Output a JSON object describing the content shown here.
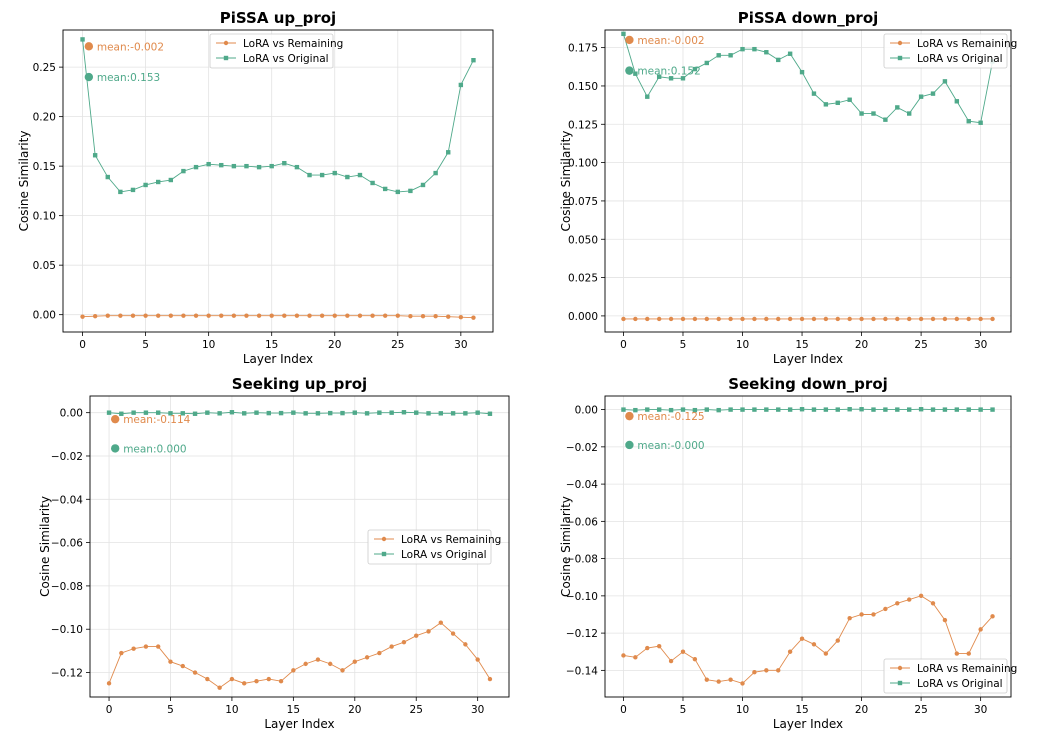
{
  "colors": {
    "remaining": "#e08a4c",
    "original": "#4fa98a"
  },
  "chart_data": [
    {
      "type": "line",
      "title": "PiSSA up_proj",
      "xlabel": "Layer Index",
      "ylabel": "Cosine Similarity",
      "xlim": [
        -1.55,
        32.55
      ],
      "ylim": [
        -0.0175,
        0.2875
      ],
      "xticks": [
        0,
        5,
        10,
        15,
        20,
        25,
        30
      ],
      "xtick_labels": [
        "0",
        "5",
        "10",
        "15",
        "20",
        "25",
        "30"
      ],
      "yticks": [
        0.0,
        0.05,
        0.1,
        0.15,
        0.2,
        0.25
      ],
      "ytick_labels": [
        "0.00",
        "0.05",
        "0.10",
        "0.15",
        "0.20",
        "0.25"
      ],
      "grid": true,
      "legend_position": "top-center",
      "x": [
        0,
        1,
        2,
        3,
        4,
        5,
        6,
        7,
        8,
        9,
        10,
        11,
        12,
        13,
        14,
        15,
        16,
        17,
        18,
        19,
        20,
        21,
        22,
        23,
        24,
        25,
        26,
        27,
        28,
        29,
        30,
        31
      ],
      "series": [
        {
          "name": "LoRA vs Remaining",
          "key": "remaining",
          "marker": "circle",
          "values": [
            -0.002,
            -0.0015,
            -0.001,
            -0.001,
            -0.001,
            -0.001,
            -0.001,
            -0.001,
            -0.001,
            -0.001,
            -0.001,
            -0.001,
            -0.001,
            -0.001,
            -0.001,
            -0.001,
            -0.001,
            -0.001,
            -0.001,
            -0.001,
            -0.001,
            -0.001,
            -0.001,
            -0.001,
            -0.001,
            -0.001,
            -0.0015,
            -0.0015,
            -0.0015,
            -0.002,
            -0.0025,
            -0.003
          ]
        },
        {
          "name": "LoRA vs Original",
          "key": "original",
          "marker": "square",
          "values": [
            0.278,
            0.161,
            0.139,
            0.124,
            0.126,
            0.131,
            0.134,
            0.136,
            0.145,
            0.149,
            0.152,
            0.151,
            0.15,
            0.15,
            0.149,
            0.15,
            0.153,
            0.149,
            0.141,
            0.141,
            0.143,
            0.139,
            0.141,
            0.133,
            0.127,
            0.124,
            0.125,
            0.131,
            0.143,
            0.164,
            0.232,
            0.257
          ]
        }
      ],
      "annotations": [
        {
          "key": "remaining",
          "text": "mean:-0.002",
          "x": 0.5,
          "y": 0.271
        },
        {
          "key": "original",
          "text": "mean:0.153",
          "x": 0.5,
          "y": 0.24
        }
      ]
    },
    {
      "type": "line",
      "title": "PiSSA down_proj",
      "xlabel": "Layer Index",
      "ylabel": "Cosine Similarity",
      "xlim": [
        -1.55,
        32.55
      ],
      "ylim": [
        -0.0105,
        0.1865
      ],
      "xticks": [
        0,
        5,
        10,
        15,
        20,
        25,
        30
      ],
      "xtick_labels": [
        "0",
        "5",
        "10",
        "15",
        "20",
        "25",
        "30"
      ],
      "yticks": [
        0.0,
        0.025,
        0.05,
        0.075,
        0.1,
        0.125,
        0.15,
        0.175
      ],
      "ytick_labels": [
        "0.000",
        "0.025",
        "0.050",
        "0.075",
        "0.100",
        "0.125",
        "0.150",
        "0.175"
      ],
      "grid": true,
      "legend_position": "top-right",
      "x": [
        0,
        1,
        2,
        3,
        4,
        5,
        6,
        7,
        8,
        9,
        10,
        11,
        12,
        13,
        14,
        15,
        16,
        17,
        18,
        19,
        20,
        21,
        22,
        23,
        24,
        25,
        26,
        27,
        28,
        29,
        30,
        31
      ],
      "series": [
        {
          "name": "LoRA vs Remaining",
          "key": "remaining",
          "marker": "circle",
          "values": [
            -0.002,
            -0.002,
            -0.002,
            -0.002,
            -0.002,
            -0.002,
            -0.002,
            -0.002,
            -0.002,
            -0.002,
            -0.002,
            -0.002,
            -0.002,
            -0.002,
            -0.002,
            -0.002,
            -0.002,
            -0.002,
            -0.002,
            -0.002,
            -0.002,
            -0.002,
            -0.002,
            -0.002,
            -0.002,
            -0.002,
            -0.002,
            -0.002,
            -0.002,
            -0.002,
            -0.002,
            -0.002
          ]
        },
        {
          "name": "LoRA vs Original",
          "key": "original",
          "marker": "square",
          "values": [
            0.184,
            0.158,
            0.143,
            0.156,
            0.155,
            0.155,
            0.161,
            0.165,
            0.17,
            0.17,
            0.174,
            0.174,
            0.172,
            0.167,
            0.171,
            0.159,
            0.145,
            0.138,
            0.139,
            0.141,
            0.132,
            0.132,
            0.128,
            0.136,
            0.132,
            0.143,
            0.145,
            0.153,
            0.14,
            0.127,
            0.126,
            0.166
          ]
        }
      ],
      "annotations": [
        {
          "key": "remaining",
          "text": "mean:-0.002",
          "x": 0.5,
          "y": 0.18
        },
        {
          "key": "original",
          "text": "mean:0.152",
          "x": 0.5,
          "y": 0.16
        }
      ]
    },
    {
      "type": "line",
      "title": "Seeking up_proj",
      "xlabel": "Layer Index",
      "ylabel": "Cosine Similarity",
      "xlim": [
        -1.55,
        32.55
      ],
      "ylim": [
        -0.1313,
        0.0077
      ],
      "xticks": [
        0,
        5,
        10,
        15,
        20,
        25,
        30
      ],
      "xtick_labels": [
        "0",
        "5",
        "10",
        "15",
        "20",
        "25",
        "30"
      ],
      "yticks": [
        0.0,
        -0.02,
        -0.04,
        -0.06,
        -0.08,
        -0.1,
        -0.12
      ],
      "ytick_labels": [
        "0.00",
        "−0.02",
        "−0.04",
        "−0.06",
        "−0.08",
        "−0.10",
        "−0.12"
      ],
      "grid": true,
      "legend_position": "center-right",
      "x": [
        0,
        1,
        2,
        3,
        4,
        5,
        6,
        7,
        8,
        9,
        10,
        11,
        12,
        13,
        14,
        15,
        16,
        17,
        18,
        19,
        20,
        21,
        22,
        23,
        24,
        25,
        26,
        27,
        28,
        29,
        30,
        31
      ],
      "series": [
        {
          "name": "LoRA vs Remaining",
          "key": "remaining",
          "marker": "circle",
          "values": [
            -0.125,
            -0.111,
            -0.109,
            -0.108,
            -0.108,
            -0.115,
            -0.117,
            -0.12,
            -0.123,
            -0.127,
            -0.123,
            -0.125,
            -0.124,
            -0.123,
            -0.124,
            -0.119,
            -0.116,
            -0.114,
            -0.116,
            -0.119,
            -0.115,
            -0.113,
            -0.111,
            -0.108,
            -0.106,
            -0.103,
            -0.101,
            -0.097,
            -0.102,
            -0.107,
            -0.114,
            -0.123
          ]
        },
        {
          "name": "LoRA vs Original",
          "key": "original",
          "marker": "square",
          "values": [
            0.0,
            -0.0005,
            0.0,
            0.0,
            0.0,
            -0.0003,
            -0.0003,
            -0.0005,
            0.0,
            -0.0003,
            0.0002,
            -0.0003,
            0.0,
            -0.0002,
            -0.0002,
            0.0,
            -0.0003,
            -0.0003,
            -0.0002,
            -0.0002,
            0.0,
            -0.0003,
            0.0,
            0.0,
            0.0002,
            0.0,
            -0.0003,
            -0.0003,
            -0.0003,
            -0.0003,
            0.0,
            -0.0005
          ]
        }
      ],
      "annotations": [
        {
          "key": "remaining",
          "text": "mean:-0.114",
          "x": 0.5,
          "y": -0.003
        },
        {
          "key": "original",
          "text": "mean:0.000",
          "x": 0.5,
          "y": -0.0165
        }
      ]
    },
    {
      "type": "line",
      "title": "Seeking down_proj",
      "xlabel": "Layer Index",
      "ylabel": "Cosine Similarity",
      "xlim": [
        -1.55,
        32.55
      ],
      "ylim": [
        -0.1543,
        0.0073
      ],
      "xticks": [
        0,
        5,
        10,
        15,
        20,
        25,
        30
      ],
      "xtick_labels": [
        "0",
        "5",
        "10",
        "15",
        "20",
        "25",
        "30"
      ],
      "yticks": [
        0.0,
        -0.02,
        -0.04,
        -0.06,
        -0.08,
        -0.1,
        -0.12,
        -0.14
      ],
      "ytick_labels": [
        "0.00",
        "−0.02",
        "−0.04",
        "−0.06",
        "−0.08",
        "−0.10",
        "−0.12",
        "−0.14"
      ],
      "grid": true,
      "legend_position": "bottom-right",
      "x": [
        0,
        1,
        2,
        3,
        4,
        5,
        6,
        7,
        8,
        9,
        10,
        11,
        12,
        13,
        14,
        15,
        16,
        17,
        18,
        19,
        20,
        21,
        22,
        23,
        24,
        25,
        26,
        27,
        28,
        29,
        30,
        31
      ],
      "series": [
        {
          "name": "LoRA vs Remaining",
          "key": "remaining",
          "marker": "circle",
          "values": [
            -0.132,
            -0.133,
            -0.128,
            -0.127,
            -0.135,
            -0.13,
            -0.134,
            -0.145,
            -0.146,
            -0.145,
            -0.147,
            -0.141,
            -0.14,
            -0.14,
            -0.13,
            -0.123,
            -0.126,
            -0.131,
            -0.124,
            -0.112,
            -0.11,
            -0.11,
            -0.107,
            -0.104,
            -0.102,
            -0.1,
            -0.104,
            -0.113,
            -0.131,
            -0.131,
            -0.118,
            -0.111
          ]
        },
        {
          "name": "LoRA vs Original",
          "key": "original",
          "marker": "square",
          "values": [
            0.0,
            -0.0003,
            0.0,
            0.0,
            -0.0003,
            0.0,
            -0.0003,
            0.0,
            -0.0003,
            0.0,
            0.0,
            0.0,
            0.0,
            0.0,
            0.0,
            0.0002,
            0.0,
            0.0,
            0.0,
            0.0002,
            0.0002,
            0.0,
            0.0,
            0.0,
            0.0,
            0.0002,
            0.0,
            0.0,
            0.0,
            0.0,
            0.0,
            0.0
          ]
        }
      ],
      "annotations": [
        {
          "key": "remaining",
          "text": "mean:-0.125",
          "x": 0.5,
          "y": -0.0035
        },
        {
          "key": "original",
          "text": "mean:-0.000",
          "x": 0.5,
          "y": -0.019
        }
      ]
    }
  ]
}
